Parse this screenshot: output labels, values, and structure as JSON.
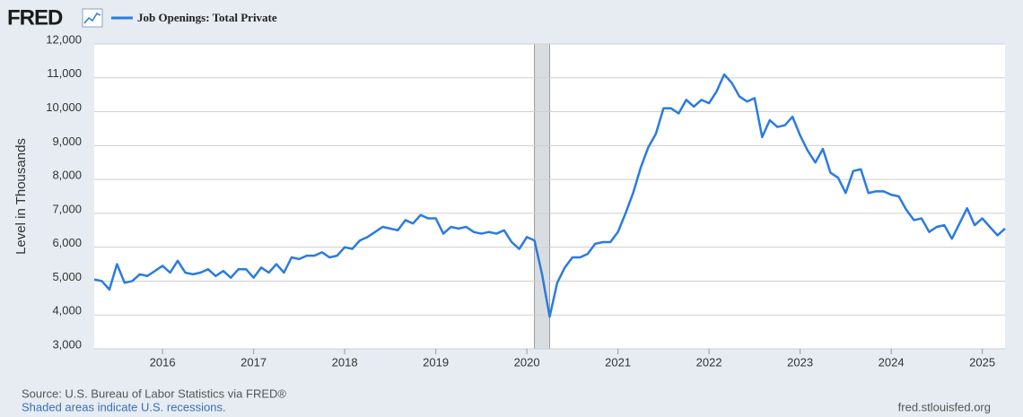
{
  "chart_data": {
    "type": "line",
    "logo": "FRED",
    "ylabel": "Level in Thousands",
    "source": "Source: U.S. Bureau of Labor Statistics via FRED®",
    "note": "Shaded areas indicate U.S. recessions.",
    "url": "fred.stlouisfed.org",
    "grid": true,
    "recessions": [
      [
        "2020-02",
        "2020-04"
      ]
    ],
    "xlim": [
      "2015-04",
      "2025-04"
    ],
    "xticks": [
      {
        "value": "2016-01",
        "label": "2016"
      },
      {
        "value": "2017-01",
        "label": "2017"
      },
      {
        "value": "2018-01",
        "label": "2018"
      },
      {
        "value": "2019-01",
        "label": "2019"
      },
      {
        "value": "2020-01",
        "label": "2020"
      },
      {
        "value": "2021-01",
        "label": "2021"
      },
      {
        "value": "2022-01",
        "label": "2022"
      },
      {
        "value": "2023-01",
        "label": "2023"
      },
      {
        "value": "2024-01",
        "label": "2024"
      },
      {
        "value": "2025-01",
        "label": "2025"
      }
    ],
    "ylim": [
      3000,
      12000
    ],
    "yticks": [
      {
        "value": 3000,
        "label": "3,000"
      },
      {
        "value": 4000,
        "label": "4,000"
      },
      {
        "value": 5000,
        "label": "5,000"
      },
      {
        "value": 6000,
        "label": "6,000"
      },
      {
        "value": 7000,
        "label": "7,000"
      },
      {
        "value": 8000,
        "label": "8,000"
      },
      {
        "value": 9000,
        "label": "9,000"
      },
      {
        "value": 10000,
        "label": "10,000"
      },
      {
        "value": 11000,
        "label": "11,000"
      },
      {
        "value": 12000,
        "label": "12,000"
      }
    ],
    "x": [
      "2015-04",
      "2015-05",
      "2015-06",
      "2015-07",
      "2015-08",
      "2015-09",
      "2015-10",
      "2015-11",
      "2015-12",
      "2016-01",
      "2016-02",
      "2016-03",
      "2016-04",
      "2016-05",
      "2016-06",
      "2016-07",
      "2016-08",
      "2016-09",
      "2016-10",
      "2016-11",
      "2016-12",
      "2017-01",
      "2017-02",
      "2017-03",
      "2017-04",
      "2017-05",
      "2017-06",
      "2017-07",
      "2017-08",
      "2017-09",
      "2017-10",
      "2017-11",
      "2017-12",
      "2018-01",
      "2018-02",
      "2018-03",
      "2018-04",
      "2018-05",
      "2018-06",
      "2018-07",
      "2018-08",
      "2018-09",
      "2018-10",
      "2018-11",
      "2018-12",
      "2019-01",
      "2019-02",
      "2019-03",
      "2019-04",
      "2019-05",
      "2019-06",
      "2019-07",
      "2019-08",
      "2019-09",
      "2019-10",
      "2019-11",
      "2019-12",
      "2020-01",
      "2020-02",
      "2020-03",
      "2020-04",
      "2020-05",
      "2020-06",
      "2020-07",
      "2020-08",
      "2020-09",
      "2020-10",
      "2020-11",
      "2020-12",
      "2021-01",
      "2021-02",
      "2021-03",
      "2021-04",
      "2021-05",
      "2021-06",
      "2021-07",
      "2021-08",
      "2021-09",
      "2021-10",
      "2021-11",
      "2021-12",
      "2022-01",
      "2022-02",
      "2022-03",
      "2022-04",
      "2022-05",
      "2022-06",
      "2022-07",
      "2022-08",
      "2022-09",
      "2022-10",
      "2022-11",
      "2022-12",
      "2023-01",
      "2023-02",
      "2023-03",
      "2023-04",
      "2023-05",
      "2023-06",
      "2023-07",
      "2023-08",
      "2023-09",
      "2023-10",
      "2023-11",
      "2023-12",
      "2024-01",
      "2024-02",
      "2024-03",
      "2024-04",
      "2024-05",
      "2024-06",
      "2024-07",
      "2024-08",
      "2024-09",
      "2024-10",
      "2024-11",
      "2024-12",
      "2025-01",
      "2025-02",
      "2025-03",
      "2025-04"
    ],
    "series": [
      {
        "name": "Job Openings: Total Private",
        "color": "#2a7be0",
        "values": [
          5050,
          5000,
          4750,
          5500,
          4950,
          5000,
          5200,
          5150,
          5300,
          5450,
          5250,
          5600,
          5250,
          5200,
          5250,
          5350,
          5150,
          5300,
          5100,
          5350,
          5350,
          5100,
          5400,
          5250,
          5500,
          5250,
          5700,
          5650,
          5750,
          5750,
          5850,
          5700,
          5750,
          6000,
          5950,
          6200,
          6300,
          6450,
          6600,
          6550,
          6500,
          6800,
          6700,
          6950,
          6850,
          6850,
          6400,
          6600,
          6550,
          6600,
          6450,
          6400,
          6450,
          6400,
          6500,
          6150,
          5950,
          6300,
          6200,
          5200,
          3950,
          4950,
          5400,
          5700,
          5700,
          5800,
          6100,
          6150,
          6150,
          6450,
          7000,
          7600,
          8350,
          8950,
          9350,
          10100,
          10100,
          9950,
          10350,
          10150,
          10350,
          10250,
          10600,
          11100,
          10850,
          10450,
          10300,
          10400,
          9250,
          9750,
          9550,
          9600,
          9850,
          9300,
          8850,
          8500,
          8900,
          8200,
          8050,
          7600,
          8250,
          8300,
          7600,
          7650,
          7650,
          7550,
          7500,
          7100,
          6800,
          6850,
          6450,
          6600,
          6650,
          6250,
          6700,
          7150,
          6650,
          6850,
          6600,
          6350,
          6550
        ]
      }
    ]
  }
}
